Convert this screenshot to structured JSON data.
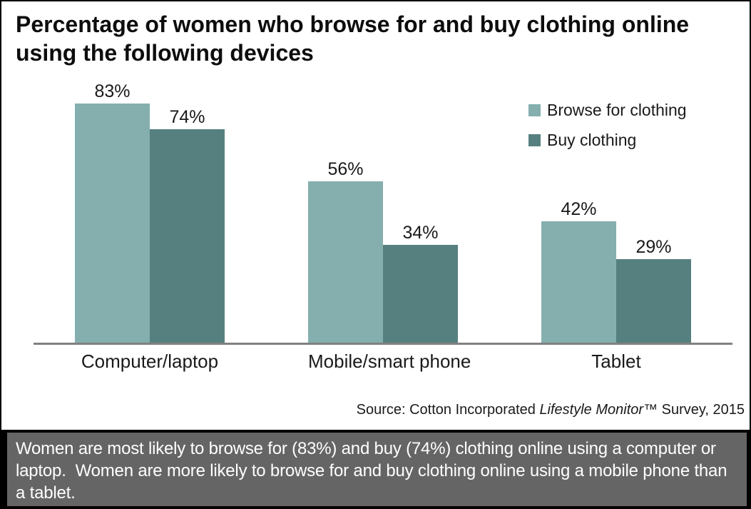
{
  "title": "Percentage of women who browse for and buy clothing online using the following devices",
  "chart_data": {
    "type": "bar",
    "title": "Percentage of women who browse for and buy clothing online using the following devices",
    "categories": [
      "Computer/laptop",
      "Mobile/smart phone",
      "Tablet"
    ],
    "series": [
      {
        "name": "Browse for clothing",
        "color": "#84AFAE",
        "values": [
          83,
          56,
          42
        ]
      },
      {
        "name": "Buy clothing",
        "color": "#56807F",
        "values": [
          74,
          34,
          29
        ]
      }
    ],
    "value_label_format": "percent",
    "ylim": [
      0,
      100
    ],
    "grid": "off",
    "legend_position": "upper-right",
    "axis_line_color": "#808080",
    "source_note": "Source: Cotton Incorporated Lifestyle Monitor™ Survey, 2015"
  },
  "source": {
    "prefix": "Source: Cotton Incorporated ",
    "italic": "Lifestyle Monitor",
    "tm": "™",
    "suffix": " Survey, 2015"
  },
  "caption_panel": {
    "background": "#656565",
    "text": "Women are most likely to browse for (83%) and buy (74%) clothing online using a computer or laptop.  Women are more likely to browse for and buy clothing online using a mobile phone than a tablet."
  }
}
